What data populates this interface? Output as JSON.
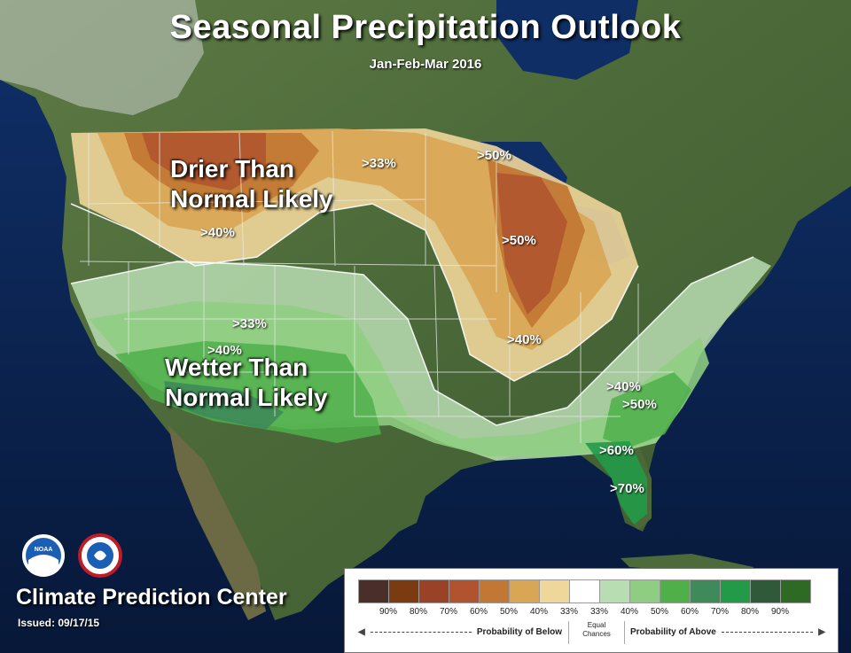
{
  "title": "Seasonal Precipitation Outlook",
  "subtitle": "Jan-Feb-Mar 2016",
  "labels": {
    "drier_line1": "Drier Than",
    "drier_line2": "Normal Likely",
    "wetter_line1": "Wetter Than",
    "wetter_line2": "Normal Likely"
  },
  "contour_labels": [
    ">33%",
    ">40%",
    ">50%",
    ">50%",
    ">40%",
    ">33%",
    ">40%",
    ">40%",
    ">50%",
    ">60%",
    ">70%"
  ],
  "footer": {
    "agency": "Climate Prediction Center",
    "issued": "Issued: 09/17/15"
  },
  "logos": {
    "noaa": "NOAA",
    "nws": "NATIONAL WEATHER SERVICE"
  },
  "legend": {
    "swatch_colors": [
      "#4a2e2a",
      "#7a3a12",
      "#9a4228",
      "#b0532e",
      "#c27834",
      "#d9a656",
      "#efd69a",
      "#ffffff",
      "#b9ddb2",
      "#8fce82",
      "#4fb04a",
      "#3f8a5a",
      "#229a48",
      "#2e5a3a",
      "#2f6a25"
    ],
    "tick_labels": [
      "90%",
      "80%",
      "70%",
      "60%",
      "50%",
      "40%",
      "33%",
      "33%",
      "40%",
      "50%",
      "60%",
      "70%",
      "80%",
      "90%"
    ],
    "below_label": "Probability of Below",
    "equal_label_line1": "Equal",
    "equal_label_line2": "Chances",
    "above_label": "Probability of Above"
  },
  "colors": {
    "ocean": "#0b1f4a",
    "land": "#4d6b3a",
    "drier_accent": "#b0532e",
    "wetter_accent": "#229a48"
  }
}
